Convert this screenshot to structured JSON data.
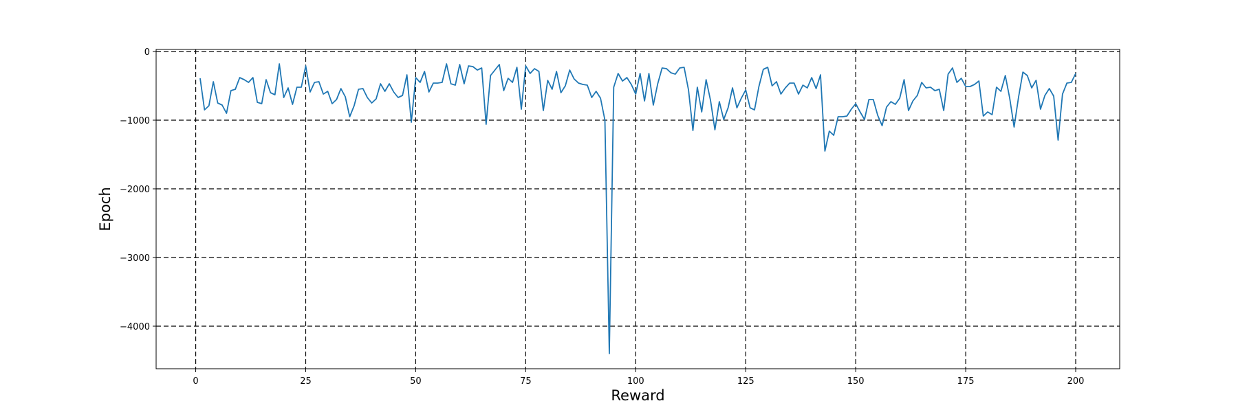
{
  "chart_data": {
    "type": "line",
    "title": "",
    "xlabel": "Reward",
    "ylabel": "Epoch",
    "xlim": [
      -9,
      210
    ],
    "ylim": [
      -4620,
      30
    ],
    "xticks": [
      0,
      25,
      50,
      75,
      100,
      125,
      150,
      175,
      200
    ],
    "xtick_labels": [
      "0",
      "25",
      "50",
      "75",
      "100",
      "125",
      "150",
      "175",
      "200"
    ],
    "yticks": [
      0,
      -1000,
      -2000,
      -3000,
      -4000
    ],
    "ytick_labels": [
      "0",
      "−1000",
      "−2000",
      "−3000",
      "−4000"
    ],
    "grid": true,
    "grid_style": "dashed",
    "legend": false,
    "series": [
      {
        "color": "#1f77b4",
        "x": [
          1,
          2,
          3,
          4,
          5,
          6,
          7,
          8,
          9,
          10,
          11,
          12,
          13,
          14,
          15,
          16,
          17,
          18,
          19,
          20,
          21,
          22,
          23,
          24,
          25,
          26,
          27,
          28,
          29,
          30,
          31,
          32,
          33,
          34,
          35,
          36,
          37,
          38,
          39,
          40,
          41,
          42,
          43,
          44,
          45,
          46,
          47,
          48,
          49,
          50,
          51,
          52,
          53,
          54,
          55,
          56,
          57,
          58,
          59,
          60,
          61,
          62,
          63,
          64,
          65,
          66,
          67,
          68,
          69,
          70,
          71,
          72,
          73,
          74,
          75,
          76,
          77,
          78,
          79,
          80,
          81,
          82,
          83,
          84,
          85,
          86,
          87,
          88,
          89,
          90,
          91,
          92,
          93,
          94,
          95,
          96,
          97,
          98,
          99,
          100,
          101,
          102,
          103,
          104,
          105,
          106,
          107,
          108,
          109,
          110,
          111,
          112,
          113,
          114,
          115,
          116,
          117,
          118,
          119,
          120,
          121,
          122,
          123,
          124,
          125,
          126,
          127,
          128,
          129,
          130,
          131,
          132,
          133,
          134,
          135,
          136,
          137,
          138,
          139,
          140,
          141,
          142,
          143,
          144,
          145,
          146,
          147,
          148,
          149,
          150,
          151,
          152,
          153,
          154,
          155,
          156,
          157,
          158,
          159,
          160,
          161,
          162,
          163,
          164,
          165,
          166,
          167,
          168,
          169,
          170,
          171,
          172,
          173,
          174,
          175,
          176,
          177,
          178,
          179,
          180,
          181,
          182,
          183,
          184,
          185,
          186,
          187,
          188,
          189,
          190,
          191,
          192,
          193,
          194,
          195,
          196,
          197,
          198,
          199,
          200
        ],
        "values": [
          -390,
          -850,
          -790,
          -440,
          -750,
          -780,
          -900,
          -570,
          -550,
          -380,
          -410,
          -450,
          -380,
          -740,
          -760,
          -410,
          -600,
          -630,
          -180,
          -670,
          -530,
          -770,
          -520,
          -520,
          -210,
          -590,
          -450,
          -440,
          -620,
          -580,
          -760,
          -700,
          -540,
          -660,
          -950,
          -790,
          -550,
          -540,
          -670,
          -750,
          -690,
          -470,
          -580,
          -470,
          -590,
          -670,
          -640,
          -340,
          -1030,
          -380,
          -450,
          -290,
          -590,
          -460,
          -460,
          -450,
          -180,
          -470,
          -490,
          -190,
          -470,
          -210,
          -220,
          -270,
          -240,
          -1060,
          -350,
          -270,
          -190,
          -570,
          -390,
          -450,
          -230,
          -840,
          -210,
          -320,
          -250,
          -290,
          -860,
          -420,
          -550,
          -290,
          -600,
          -500,
          -270,
          -400,
          -460,
          -480,
          -490,
          -670,
          -580,
          -680,
          -1000,
          -4400,
          -520,
          -320,
          -430,
          -380,
          -480,
          -620,
          -320,
          -720,
          -320,
          -780,
          -470,
          -240,
          -250,
          -310,
          -330,
          -240,
          -230,
          -560,
          -1150,
          -520,
          -880,
          -410,
          -710,
          -1140,
          -730,
          -990,
          -820,
          -530,
          -820,
          -680,
          -560,
          -820,
          -850,
          -510,
          -260,
          -230,
          -500,
          -440,
          -620,
          -530,
          -460,
          -460,
          -620,
          -490,
          -530,
          -380,
          -540,
          -340,
          -1450,
          -1160,
          -1220,
          -950,
          -950,
          -940,
          -840,
          -760,
          -880,
          -990,
          -700,
          -700,
          -930,
          -1080,
          -810,
          -730,
          -770,
          -680,
          -410,
          -860,
          -720,
          -640,
          -450,
          -530,
          -520,
          -570,
          -550,
          -860,
          -330,
          -240,
          -450,
          -390,
          -510,
          -510,
          -480,
          -430,
          -940,
          -880,
          -920,
          -520,
          -580,
          -350,
          -680,
          -1100,
          -670,
          -300,
          -350,
          -530,
          -420,
          -840,
          -640,
          -540,
          -650,
          -1290,
          -620,
          -460,
          -450,
          -320
        ]
      }
    ]
  }
}
